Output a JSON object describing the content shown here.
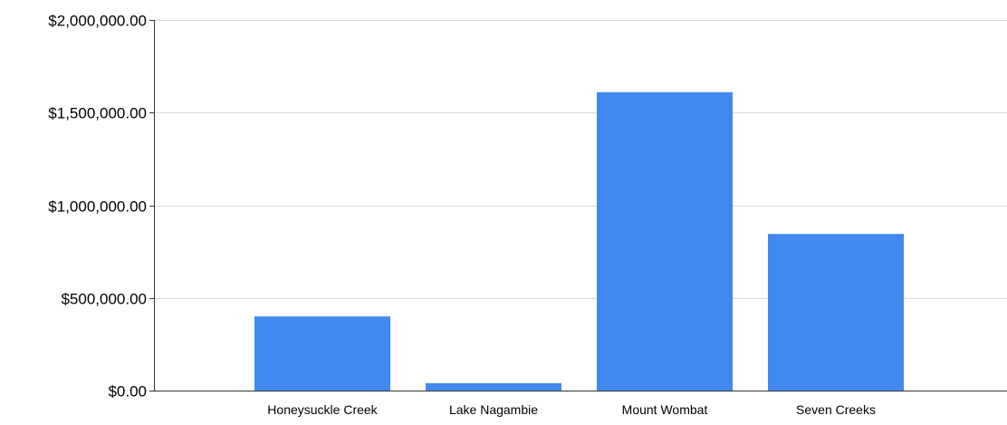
{
  "chart_data": {
    "type": "bar",
    "title": "",
    "xlabel": "",
    "ylabel": "",
    "categories": [
      "Honeysuckle Creek",
      "Lake Nagambie",
      "Mount Wombat",
      "Seven Creeks"
    ],
    "values": [
      400000,
      40000,
      1610000,
      845000
    ],
    "ylim": [
      0,
      2000000
    ],
    "yticks": [
      0,
      500000,
      1000000,
      1500000,
      2000000
    ],
    "ytick_labels": [
      "$0.00",
      "$500,000.00",
      "$1,000,000.00",
      "$1,500,000.00",
      "$2,000,000.00"
    ],
    "grid": true,
    "legend": "none",
    "colors": {
      "bar": "#4189ee",
      "grid": "#d9d9d9",
      "axis": "#333333",
      "text": "#000000"
    }
  }
}
